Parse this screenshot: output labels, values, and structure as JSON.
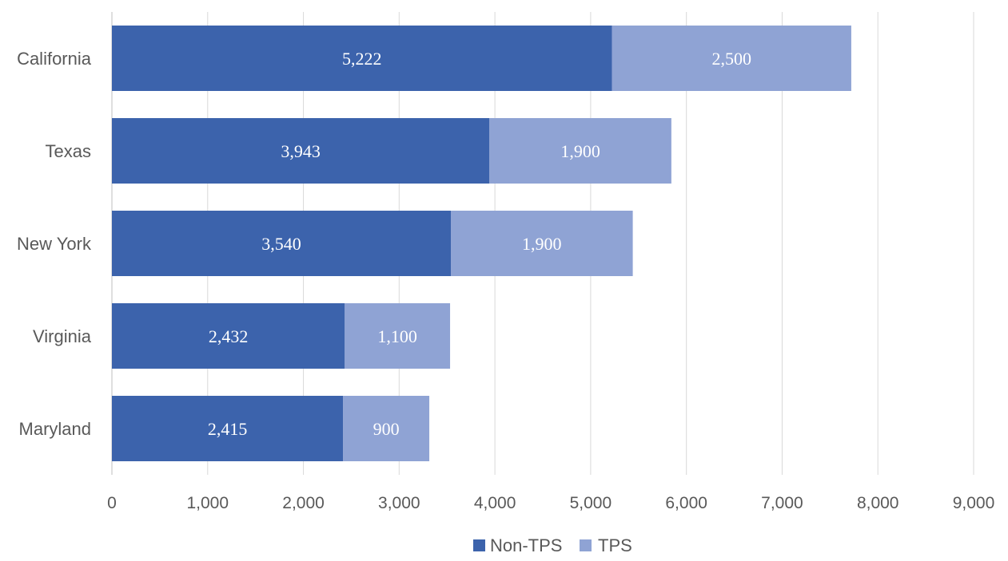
{
  "chart_data": {
    "type": "bar",
    "orientation": "horizontal",
    "stacked": true,
    "categories": [
      "California",
      "Texas",
      "New York",
      "Virginia",
      "Maryland"
    ],
    "series": [
      {
        "name": "Non-TPS",
        "values": [
          5222,
          3943,
          3540,
          2432,
          2415
        ],
        "color": "#3c63ac"
      },
      {
        "name": "TPS",
        "values": [
          2500,
          1900,
          1900,
          1100,
          900
        ],
        "color": "#8fa3d4"
      }
    ],
    "xlim": [
      0,
      9000
    ],
    "x_ticks": [
      "0",
      "1,000",
      "2,000",
      "3,000",
      "4,000",
      "5,000",
      "6,000",
      "7,000",
      "8,000",
      "9,000"
    ],
    "grid": true,
    "legend_position": "bottom",
    "data_labels": true
  }
}
